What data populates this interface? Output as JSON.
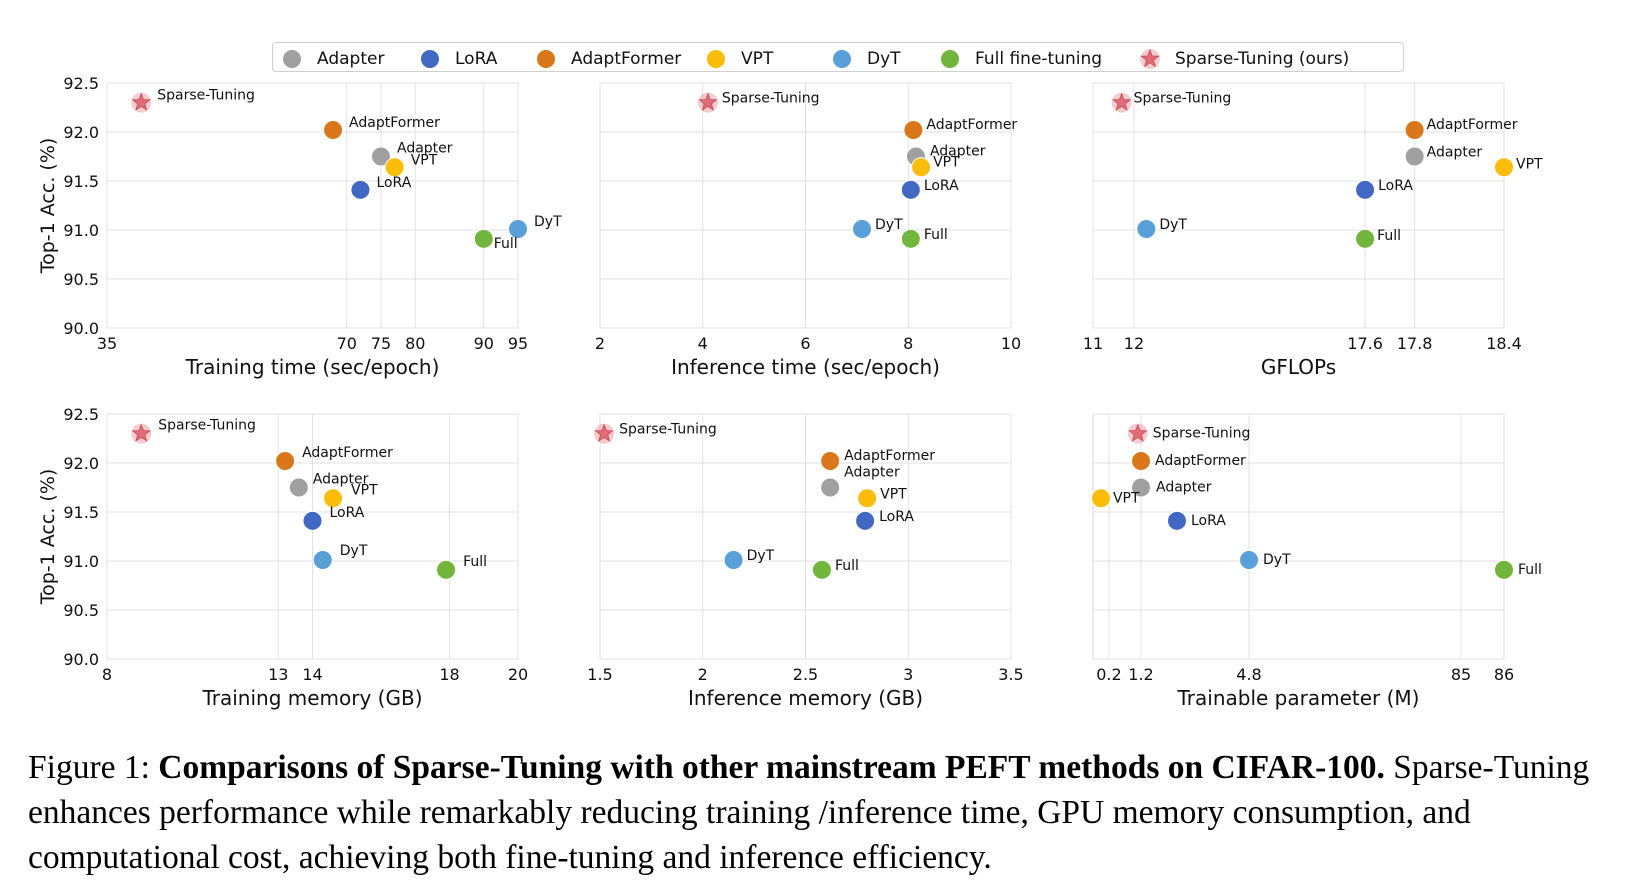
{
  "chart_data": {
    "type": "scatter",
    "y_label": "Top-1 Acc. (%)",
    "y_ticks": [
      "92.5",
      "92.0",
      "91.5",
      "91.0",
      "90.5",
      "90.0"
    ],
    "ylim": [
      90.0,
      92.5
    ],
    "grid": true,
    "legend_position": "top-center",
    "methods": [
      {
        "name": "Adapter",
        "color": "#a0a0a0",
        "marker": "circle"
      },
      {
        "name": "LoRA",
        "color": "#4169c4",
        "marker": "circle"
      },
      {
        "name": "AdaptFormer",
        "color": "#d9771a",
        "marker": "circle"
      },
      {
        "name": "VPT",
        "color": "#fbbd08",
        "marker": "circle"
      },
      {
        "name": "DyT",
        "color": "#5aa0d8",
        "marker": "circle"
      },
      {
        "name": "Full fine-tuning",
        "color": "#72b53c",
        "marker": "circle"
      },
      {
        "name": "Sparse-Tuning (ours)",
        "color": "#e06d75",
        "marker": "star"
      }
    ],
    "panels": [
      {
        "xlabel": "Training time (sec/epoch)",
        "xlim": [
          35,
          95
        ],
        "xticks": [
          35,
          70,
          75,
          80,
          90,
          95
        ],
        "points": [
          {
            "label": "Sparse-Tuning",
            "method": 6,
            "x": 40,
            "y": 92.3
          },
          {
            "label": "AdaptFormer",
            "method": 2,
            "x": 68,
            "y": 92.02
          },
          {
            "label": "Adapter",
            "method": 0,
            "x": 75,
            "y": 91.75
          },
          {
            "label": "VPT",
            "method": 3,
            "x": 77,
            "y": 91.64
          },
          {
            "label": "LoRA",
            "method": 1,
            "x": 72,
            "y": 91.41
          },
          {
            "label": "DyT",
            "method": 4,
            "x": 95,
            "y": 91.01
          },
          {
            "label": "Full",
            "method": 5,
            "x": 90,
            "y": 90.91
          }
        ]
      },
      {
        "xlabel": "Inference time (sec/epoch)",
        "xlim": [
          2,
          10
        ],
        "xticks": [
          2,
          4,
          6,
          8,
          10
        ],
        "points": [
          {
            "label": "Sparse-Tuning",
            "method": 6,
            "x": 4.1,
            "y": 92.3
          },
          {
            "label": "AdaptFormer",
            "method": 2,
            "x": 8.1,
            "y": 92.02
          },
          {
            "label": "Adapter",
            "method": 0,
            "x": 8.15,
            "y": 91.75
          },
          {
            "label": "VPT",
            "method": 3,
            "x": 8.25,
            "y": 91.64
          },
          {
            "label": "LoRA",
            "method": 1,
            "x": 8.05,
            "y": 91.41
          },
          {
            "label": "DyT",
            "method": 4,
            "x": 7.1,
            "y": 91.01
          },
          {
            "label": "Full",
            "method": 5,
            "x": 8.05,
            "y": 90.91
          }
        ]
      },
      {
        "xlabel": "GFLOPs",
        "xlim": [
          11,
          18.4
        ],
        "xticks": [
          11,
          12,
          17.6,
          17.8,
          18.4
        ],
        "xtick_labels": [
          "11",
          "12",
          "17.6",
          "17.8",
          "18.4"
        ],
        "x_scale": "piecewise",
        "points": [
          {
            "label": "Sparse-Tuning",
            "method": 6,
            "x": 11.7,
            "y": 92.3
          },
          {
            "label": "AdaptFormer",
            "method": 2,
            "x": 17.8,
            "y": 92.02
          },
          {
            "label": "Adapter",
            "method": 0,
            "x": 17.8,
            "y": 91.75
          },
          {
            "label": "VPT",
            "method": 3,
            "x": 18.4,
            "y": 91.64
          },
          {
            "label": "LoRA",
            "method": 1,
            "x": 17.6,
            "y": 91.41
          },
          {
            "label": "DyT",
            "method": 4,
            "x": 12.3,
            "y": 91.01
          },
          {
            "label": "Full",
            "method": 5,
            "x": 17.6,
            "y": 90.91
          }
        ]
      },
      {
        "xlabel": "Training memory (GB)",
        "xlim": [
          8,
          20
        ],
        "xticks": [
          8,
          13,
          14,
          18,
          20
        ],
        "points": [
          {
            "label": "Sparse-Tuning",
            "method": 6,
            "x": 9,
            "y": 92.3
          },
          {
            "label": "AdaptFormer",
            "method": 2,
            "x": 13.2,
            "y": 92.02
          },
          {
            "label": "Adapter",
            "method": 0,
            "x": 13.6,
            "y": 91.75
          },
          {
            "label": "VPT",
            "method": 3,
            "x": 14.6,
            "y": 91.64
          },
          {
            "label": "LoRA",
            "method": 1,
            "x": 14.0,
            "y": 91.41
          },
          {
            "label": "DyT",
            "method": 4,
            "x": 14.3,
            "y": 91.01
          },
          {
            "label": "Full",
            "method": 5,
            "x": 17.9,
            "y": 90.91
          }
        ]
      },
      {
        "xlabel": "Inference memory (GB)",
        "xlim": [
          1.5,
          3.5
        ],
        "xticks": [
          1.5,
          2,
          2.5,
          3,
          3.5
        ],
        "points": [
          {
            "label": "Sparse-Tuning",
            "method": 6,
            "x": 1.52,
            "y": 92.3
          },
          {
            "label": "AdaptFormer",
            "method": 2,
            "x": 2.62,
            "y": 92.02
          },
          {
            "label": "Adapter",
            "method": 0,
            "x": 2.62,
            "y": 91.75
          },
          {
            "label": "VPT",
            "method": 3,
            "x": 2.8,
            "y": 91.64
          },
          {
            "label": "LoRA",
            "method": 1,
            "x": 2.79,
            "y": 91.41
          },
          {
            "label": "DyT",
            "method": 4,
            "x": 2.15,
            "y": 91.01
          },
          {
            "label": "Full",
            "method": 5,
            "x": 2.58,
            "y": 90.91
          }
        ]
      },
      {
        "xlabel": "Trainable parameter (M)",
        "xlim": [
          0,
          86
        ],
        "xticks": [
          0.2,
          1.2,
          4.8,
          85,
          86
        ],
        "xtick_labels": [
          "0.2",
          "1.2",
          "4.8",
          "85",
          "86"
        ],
        "x_scale": "piecewise",
        "points": [
          {
            "label": "Sparse-Tuning",
            "method": 6,
            "x": 1.1,
            "y": 92.3
          },
          {
            "label": "AdaptFormer",
            "method": 2,
            "x": 1.2,
            "y": 92.02
          },
          {
            "label": "Adapter",
            "method": 0,
            "x": 1.2,
            "y": 91.75
          },
          {
            "label": "VPT",
            "method": 3,
            "x": 0.1,
            "y": 91.64
          },
          {
            "label": "LoRA",
            "method": 1,
            "x": 2.4,
            "y": 91.41
          },
          {
            "label": "DyT",
            "method": 4,
            "x": 4.8,
            "y": 91.01
          },
          {
            "label": "Full",
            "method": 5,
            "x": 86,
            "y": 90.91
          }
        ]
      }
    ]
  },
  "caption": {
    "prefix": "Figure 1: ",
    "bold": "Comparisons of Sparse-Tuning with other mainstream PEFT methods on CIFAR-100.",
    "body": "Sparse-Tuning enhances performance while remarkably reducing training /inference time, GPU memory consumption, and computational cost, achieving both fine-tuning and inference efficiency."
  }
}
